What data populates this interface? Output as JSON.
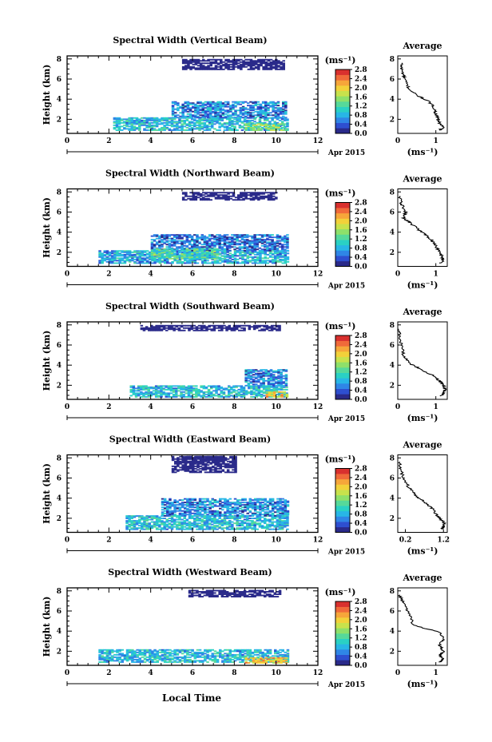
{
  "figure": {
    "xlabel": "Local Time",
    "date_label": "Apr 2015",
    "colorbar_unit": "(ms⁻¹)",
    "profile_title": "Average",
    "profile_xlabel": "(ms⁻¹)",
    "colors": {
      "colormap": [
        "#2a2a8a",
        "#2e4fd0",
        "#2f86e6",
        "#28b6e6",
        "#2ad1c4",
        "#56d99a",
        "#8ee06a",
        "#c8e24c",
        "#f2d13a",
        "#f6a63a",
        "#f06a3a",
        "#d9302e"
      ],
      "line": "#000000"
    }
  },
  "chart_data": [
    {
      "type": "heatmap",
      "title": "Spectral Width (Vertical Beam)",
      "ylabel": "Height (km)",
      "xlim": [
        0,
        12
      ],
      "ylim": [
        0.6,
        8.3
      ],
      "xticks": [
        0,
        2,
        4,
        6,
        8,
        10,
        12
      ],
      "yticks": [
        2,
        4,
        6,
        8
      ],
      "colorbar": {
        "min": 0,
        "max": 2.8,
        "ticks": [
          "2.8",
          "2.4",
          "2.0",
          "1.6",
          "1.2",
          "0.8",
          "0.4",
          "0.0"
        ]
      },
      "regions": [
        {
          "x": [
            2.2,
            10.5
          ],
          "y": [
            0.9,
            2.2
          ],
          "value": 0.9
        },
        {
          "x": [
            5.0,
            10.5
          ],
          "y": [
            2.2,
            3.8
          ],
          "value": 0.6
        },
        {
          "x": [
            8.5,
            10.5
          ],
          "y": [
            0.9,
            1.6
          ],
          "value": 1.5
        },
        {
          "x": [
            5.5,
            10.4
          ],
          "y": [
            7.0,
            8.0
          ],
          "value": 0.05
        }
      ],
      "profile": {
        "xlim": [
          0,
          1.3
        ],
        "xticks": [
          0,
          1
        ],
        "ylim": [
          0.6,
          8.3
        ],
        "yticks": [
          2,
          4,
          6,
          8
        ],
        "x": [
          0.1,
          0.1,
          0.15,
          0.2,
          0.3,
          0.5,
          0.8,
          0.95,
          1.0,
          1.05,
          1.1,
          1.2,
          1.1
        ],
        "y": [
          7.6,
          7.0,
          6.4,
          5.8,
          5.0,
          4.4,
          3.8,
          3.2,
          2.6,
          2.0,
          1.6,
          1.2,
          0.9
        ]
      }
    },
    {
      "type": "heatmap",
      "title": "Spectral Width (Northward Beam)",
      "ylabel": "Height (km)",
      "xlim": [
        0,
        12
      ],
      "ylim": [
        0.6,
        8.3
      ],
      "xticks": [
        0,
        2,
        4,
        6,
        8,
        10,
        12
      ],
      "yticks": [
        2,
        4,
        6,
        8
      ],
      "colorbar": {
        "min": 0,
        "max": 2.8,
        "ticks": [
          "2.8",
          "2.4",
          "2.0",
          "1.6",
          "1.2",
          "0.8",
          "0.4",
          "0.0"
        ]
      },
      "regions": [
        {
          "x": [
            1.5,
            10.5
          ],
          "y": [
            0.9,
            2.2
          ],
          "value": 0.8
        },
        {
          "x": [
            4.0,
            10.5
          ],
          "y": [
            2.2,
            3.8
          ],
          "value": 0.5
        },
        {
          "x": [
            4.0,
            7.5
          ],
          "y": [
            1.4,
            2.4
          ],
          "value": 1.2
        },
        {
          "x": [
            5.5,
            10.0
          ],
          "y": [
            7.2,
            8.0
          ],
          "value": 0.05
        }
      ],
      "profile": {
        "xlim": [
          0,
          1.3
        ],
        "xticks": [
          0,
          1
        ],
        "ylim": [
          0.6,
          8.3
        ],
        "yticks": [
          2,
          4,
          6,
          8
        ],
        "x": [
          0.05,
          0.1,
          0.2,
          0.15,
          0.3,
          0.5,
          0.7,
          0.9,
          1.0,
          1.1,
          1.15,
          1.2,
          1.1
        ],
        "y": [
          7.6,
          6.8,
          6.0,
          5.4,
          5.0,
          4.4,
          3.8,
          3.2,
          2.6,
          2.0,
          1.6,
          1.2,
          0.9
        ]
      }
    },
    {
      "type": "heatmap",
      "title": "Spectral Width (Southward Beam)",
      "ylabel": "Height (km)",
      "xlim": [
        0,
        12
      ],
      "ylim": [
        0.6,
        8.3
      ],
      "xticks": [
        0,
        2,
        4,
        6,
        8,
        10,
        12
      ],
      "yticks": [
        2,
        4,
        6,
        8
      ],
      "colorbar": {
        "min": 0,
        "max": 2.8,
        "ticks": [
          "2.8",
          "2.4",
          "2.0",
          "1.6",
          "1.2",
          "0.8",
          "0.4",
          "0.0"
        ]
      },
      "regions": [
        {
          "x": [
            3.0,
            10.5
          ],
          "y": [
            0.9,
            2.0
          ],
          "value": 0.9
        },
        {
          "x": [
            8.5,
            10.5
          ],
          "y": [
            2.0,
            3.6
          ],
          "value": 0.6
        },
        {
          "x": [
            9.5,
            10.5
          ],
          "y": [
            0.9,
            1.4
          ],
          "value": 1.9
        },
        {
          "x": [
            3.5,
            10.2
          ],
          "y": [
            7.4,
            8.0
          ],
          "value": 0.05
        }
      ],
      "profile": {
        "xlim": [
          0,
          1.3
        ],
        "xticks": [
          0,
          1
        ],
        "ylim": [
          0.6,
          8.3
        ],
        "yticks": [
          2,
          4,
          6,
          8
        ],
        "x": [
          0.02,
          0.05,
          0.1,
          0.15,
          0.3,
          0.6,
          0.9,
          1.1,
          1.2,
          1.25,
          1.2,
          1.1
        ],
        "y": [
          7.6,
          6.8,
          6.0,
          5.0,
          4.2,
          3.6,
          3.0,
          2.4,
          2.0,
          1.6,
          1.2,
          0.9
        ]
      }
    },
    {
      "type": "heatmap",
      "title": "Spectral Width (Eastward Beam)",
      "ylabel": "Height (km)",
      "xlim": [
        0,
        12
      ],
      "ylim": [
        0.6,
        8.3
      ],
      "xticks": [
        0,
        2,
        4,
        6,
        8,
        10,
        12
      ],
      "yticks": [
        2,
        4,
        6,
        8
      ],
      "colorbar": {
        "min": 0,
        "max": 2.8,
        "ticks": [
          "2.8",
          "2.4",
          "2.0",
          "1.6",
          "1.2",
          "0.8",
          "0.4",
          "0.0"
        ]
      },
      "regions": [
        {
          "x": [
            2.8,
            10.5
          ],
          "y": [
            0.9,
            2.3
          ],
          "value": 0.9
        },
        {
          "x": [
            4.5,
            10.5
          ],
          "y": [
            2.3,
            4.0
          ],
          "value": 0.6
        },
        {
          "x": [
            5.0,
            8.0
          ],
          "y": [
            6.6,
            8.2
          ],
          "value": 0.05
        },
        {
          "x": [
            5.5,
            7.5
          ],
          "y": [
            7.4,
            8.2
          ],
          "value": 0.05
        }
      ],
      "profile": {
        "xlim": [
          0,
          1.3
        ],
        "xticks": [
          0.2,
          1.2
        ],
        "ylim": [
          0.6,
          8.3
        ],
        "yticks": [
          2,
          4,
          6,
          8
        ],
        "x": [
          0.05,
          0.08,
          0.15,
          0.3,
          0.5,
          0.7,
          0.9,
          1.0,
          1.1,
          1.2,
          1.2,
          1.15
        ],
        "y": [
          7.6,
          6.8,
          6.0,
          5.0,
          4.2,
          3.6,
          3.0,
          2.4,
          2.0,
          1.6,
          1.2,
          0.9
        ]
      }
    },
    {
      "type": "heatmap",
      "title": "Spectral Width (Westward Beam)",
      "ylabel": "Height (km)",
      "xlim": [
        0,
        12
      ],
      "ylim": [
        0.6,
        8.3
      ],
      "xticks": [
        0,
        2,
        4,
        6,
        8,
        10,
        12
      ],
      "yticks": [
        2,
        4,
        6,
        8
      ],
      "colorbar": {
        "min": 0,
        "max": 2.8,
        "ticks": [
          "2.8",
          "2.4",
          "2.0",
          "1.6",
          "1.2",
          "0.8",
          "0.4",
          "0.0"
        ]
      },
      "regions": [
        {
          "x": [
            1.5,
            10.5
          ],
          "y": [
            0.9,
            2.2
          ],
          "value": 0.9
        },
        {
          "x": [
            8.5,
            10.5
          ],
          "y": [
            0.9,
            1.4
          ],
          "value": 2.0
        },
        {
          "x": [
            5.8,
            10.2
          ],
          "y": [
            7.4,
            8.1
          ],
          "value": 0.05
        }
      ],
      "profile": {
        "xlim": [
          0,
          1.3
        ],
        "xticks": [
          0,
          1
        ],
        "ylim": [
          0.6,
          8.3
        ],
        "yticks": [
          2,
          4,
          6,
          8
        ],
        "x": [
          0.05,
          0.15,
          0.3,
          0.4,
          1.1,
          1.2,
          1.1,
          1.2,
          1.1,
          1.2,
          1.1
        ],
        "y": [
          7.6,
          6.8,
          5.8,
          4.6,
          3.9,
          3.2,
          2.6,
          2.0,
          1.6,
          1.2,
          0.9
        ]
      }
    }
  ]
}
